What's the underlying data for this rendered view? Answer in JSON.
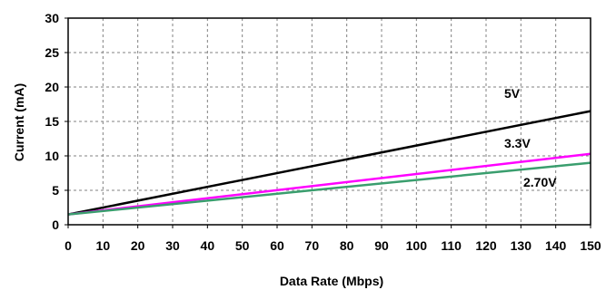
{
  "chart_data": {
    "type": "line",
    "title": "",
    "xlabel": "Data Rate (Mbps)",
    "ylabel": "Current (mA)",
    "xlim": [
      0,
      150
    ],
    "ylim": [
      0,
      30
    ],
    "x_ticks": [
      "0",
      "10",
      "20",
      "30",
      "40",
      "50",
      "60",
      "70",
      "80",
      "90",
      "100",
      "110",
      "120",
      "130",
      "140",
      "150"
    ],
    "y_ticks": [
      "0",
      "5",
      "10",
      "15",
      "20",
      "25",
      "30"
    ],
    "grid": true,
    "series": [
      {
        "name": "5V",
        "color": "#000000",
        "x": [
          0,
          150
        ],
        "y": [
          1.5,
          16.5
        ]
      },
      {
        "name": "3.3V",
        "color": "#ff00ff",
        "x": [
          0,
          150
        ],
        "y": [
          1.5,
          10.3
        ]
      },
      {
        "name": "2.70V",
        "color": "#3a9e6e",
        "x": [
          0,
          150
        ],
        "y": [
          1.5,
          9.0
        ]
      }
    ]
  }
}
